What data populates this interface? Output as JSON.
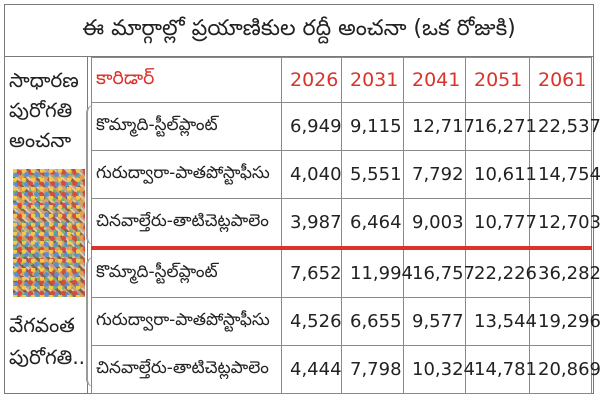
{
  "title": "ఈ మార్గాల్లో ప్రయాణికుల రద్దీ అంచనా (ఒక రోజుకి)",
  "left_labels": {
    "normal_growth": "సాధారణ పురోగతి అంచనా",
    "fast_growth": "వేగవంత పురోగతి.."
  },
  "table": {
    "corridor_header": "కారిడార్",
    "years": [
      "2026",
      "2031",
      "2041",
      "2051",
      "2061"
    ],
    "normal_rows": [
      {
        "corridor": "కొమ్మాది-స్టీల్‌ప్లాంట్",
        "values": [
          "6,949",
          "9,115",
          "12,717",
          "16,271",
          "22,537"
        ]
      },
      {
        "corridor": "గురుద్వారా-పాతపోస్టాఫీసు",
        "values": [
          "4,040",
          "5,551",
          "7,792",
          "10,611",
          "14,754"
        ]
      },
      {
        "corridor": "చినవాల్తేరు-తాటిచెట్లపాలెం",
        "values": [
          "3,987",
          "6,464",
          "9,003",
          "10,777",
          "12,703"
        ]
      }
    ],
    "fast_rows": [
      {
        "corridor": "కొమ్మాది-స్టీల్‌ప్లాంట్",
        "values": [
          "7,652",
          "11,994",
          "16,757",
          "22,226",
          "36,282"
        ]
      },
      {
        "corridor": "గురుద్వారా-పాతపోస్టాఫీసు",
        "values": [
          "4,526",
          "6,655",
          "9,577",
          "13,544",
          "19,296"
        ]
      },
      {
        "corridor": "చినవాల్తేరు-తాటిచెట్లపాలెం",
        "values": [
          "4,444",
          "7,798",
          "10,324",
          "14,781",
          "20,869"
        ]
      }
    ]
  },
  "colors": {
    "accent_red": "#d8342b",
    "border_gray": "#8a8a8a"
  }
}
